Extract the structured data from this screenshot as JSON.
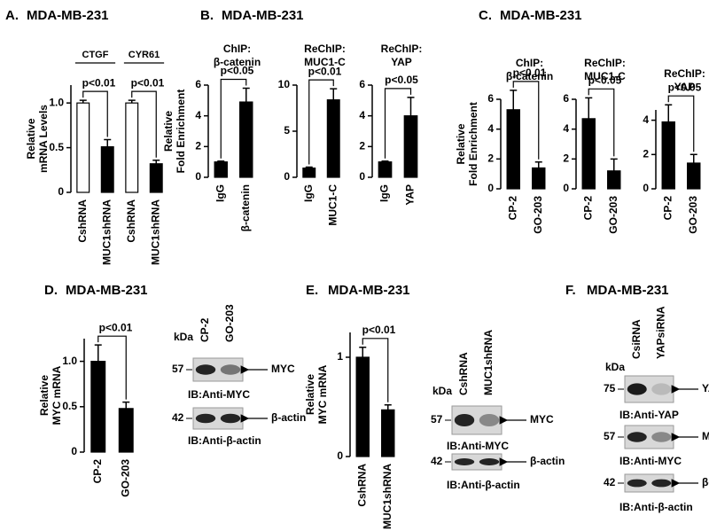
{
  "panels": [
    {
      "label": "A.",
      "title": "MDA-MB-231"
    },
    {
      "label": "B.",
      "title": "MDA-MB-231"
    },
    {
      "label": "C.",
      "title": "MDA-MB-231"
    },
    {
      "label": "D.",
      "title": "MDA-MB-231"
    },
    {
      "label": "E.",
      "title": "MDA-MB-231"
    },
    {
      "label": "F.",
      "title": "MDA-MB-231"
    }
  ],
  "chart_data": [
    {
      "type": "bar",
      "ylabel": [
        "Relative",
        "mRNA Levels"
      ],
      "groups": [
        "CTGF",
        "CYR61"
      ],
      "categories": [
        "CshRNA",
        "MUC1shRNA",
        "CshRNA",
        "MUC1shRNA"
      ],
      "values": [
        1.0,
        0.51,
        1.0,
        0.32
      ],
      "errors": [
        0.03,
        0.08,
        0.03,
        0.04
      ],
      "colors": [
        "#ffffff",
        "#000000",
        "#ffffff",
        "#000000"
      ],
      "annotations": [
        "p<0.01",
        "p<0.01"
      ],
      "ylim": [
        0,
        1.2
      ],
      "yticks": [
        0,
        0.5,
        {
          "value": 1,
          "label": "1.0"
        }
      ]
    },
    {
      "type": "bar",
      "subtitle": [
        "ChIP:",
        "β-catenin"
      ],
      "ylabel": [
        "Relative",
        "Fold Enrichment"
      ],
      "categories": [
        "IgG",
        "β-catenin"
      ],
      "values": [
        1.0,
        4.9
      ],
      "errors": [
        0.05,
        0.9
      ],
      "colors": [
        "#000000",
        "#000000"
      ],
      "annotations": [
        "p<0.05"
      ],
      "ylim": [
        0,
        6
      ],
      "yticks": [
        0,
        2,
        4,
        6
      ]
    },
    {
      "type": "bar",
      "subtitle": [
        "ReChIP:",
        "MUC1-C"
      ],
      "categories": [
        "IgG",
        "MUC1-C"
      ],
      "values": [
        1.0,
        8.4
      ],
      "errors": [
        0.1,
        1.2
      ],
      "colors": [
        "#000000",
        "#000000"
      ],
      "annotations": [
        "p<0.01"
      ],
      "ylim": [
        0,
        10
      ],
      "yticks": [
        0,
        5,
        10
      ]
    },
    {
      "type": "bar",
      "subtitle": [
        "ReChIP:",
        "YAP"
      ],
      "categories": [
        "IgG",
        "YAP"
      ],
      "values": [
        1.0,
        4.0
      ],
      "errors": [
        0.05,
        1.2
      ],
      "colors": [
        "#000000",
        "#000000"
      ],
      "annotations": [
        "p<0.05"
      ],
      "ylim": [
        0,
        6
      ],
      "yticks": [
        0,
        2,
        4,
        6
      ]
    },
    {
      "type": "bar",
      "subtitle": [
        "ChIP:",
        "β-catenin"
      ],
      "ylabel": [
        "Relative",
        "Fold Enrichment"
      ],
      "categories": [
        "CP-2",
        "GO-203"
      ],
      "values": [
        5.3,
        1.4
      ],
      "errors": [
        1.3,
        0.4
      ],
      "colors": [
        "#000000",
        "#000000"
      ],
      "annotations": [
        "p<0.01"
      ],
      "ylim": [
        0,
        6
      ],
      "yticks": [
        0,
        2,
        4,
        6
      ]
    },
    {
      "type": "bar",
      "subtitle": [
        "ReChIP:",
        "MUC1-C"
      ],
      "categories": [
        "CP-2",
        "GO-203"
      ],
      "values": [
        4.7,
        1.2
      ],
      "errors": [
        1.4,
        0.8
      ],
      "colors": [
        "#000000",
        "#000000"
      ],
      "annotations": [
        "p<0.05"
      ],
      "ylim": [
        0,
        6
      ],
      "yticks": [
        0,
        2,
        4,
        6
      ]
    },
    {
      "type": "bar",
      "subtitle": [
        "ReChIP:",
        "YAP"
      ],
      "categories": [
        "CP-2",
        "GO-203"
      ],
      "values": [
        3.9,
        1.5
      ],
      "errors": [
        1.0,
        0.5
      ],
      "colors": [
        "#000000",
        "#000000"
      ],
      "annotations": [
        "p<0.05"
      ],
      "ylim": [
        0,
        4.6
      ],
      "yticks": [
        0,
        2,
        4
      ]
    },
    {
      "type": "bar",
      "ylabel": [
        "Relative",
        "MYC mRNA"
      ],
      "categories": [
        "CP-2",
        "GO-203"
      ],
      "values": [
        1.0,
        0.48
      ],
      "errors": [
        0.18,
        0.07
      ],
      "colors": [
        "#000000",
        "#000000"
      ],
      "annotations": [
        "p<0.01"
      ],
      "ylim": [
        0,
        1.25
      ],
      "yticks": [
        0,
        0.5,
        {
          "value": 1,
          "label": "1.0"
        }
      ]
    },
    {
      "type": "bar",
      "ylabel": [
        "Relative",
        "MYC mRNA"
      ],
      "categories": [
        "CshRNA",
        "MUC1shRNA"
      ],
      "values": [
        1.0,
        0.47
      ],
      "errors": [
        0.1,
        0.05
      ],
      "colors": [
        "#000000",
        "#000000"
      ],
      "annotations": [
        "p<0.01"
      ],
      "ylim": [
        0,
        1.25
      ],
      "yticks": [
        0,
        1
      ]
    }
  ],
  "blots": [
    {
      "kda": "kDa",
      "lanes": [
        "CP-2",
        "GO-203"
      ],
      "rows": [
        {
          "marker": 57,
          "target": "MYC",
          "ib": "IB:Anti-MYC"
        },
        {
          "marker": 42,
          "target": "β-actin",
          "ib": "IB:Anti-β-actin"
        }
      ]
    },
    {
      "kda": "kDa",
      "lanes": [
        "CshRNA",
        "MUC1shRNA"
      ],
      "rows": [
        {
          "marker": 57,
          "target": "MYC",
          "ib": "IB:Anti-MYC"
        },
        {
          "marker": 42,
          "target": "β-actin",
          "ib": "IB:Anti-β-actin"
        }
      ]
    },
    {
      "kda": "kDa",
      "lanes": [
        "CsiRNA",
        "YAPsiRNA"
      ],
      "rows": [
        {
          "marker": 75,
          "target": "YAP",
          "ib": "IB:Anti-YAP"
        },
        {
          "marker": 57,
          "target": "MYC",
          "ib": "IB:Anti-MYC"
        },
        {
          "marker": 42,
          "target": "β-actin",
          "ib": "IB:Anti-β-actin"
        }
      ]
    }
  ]
}
